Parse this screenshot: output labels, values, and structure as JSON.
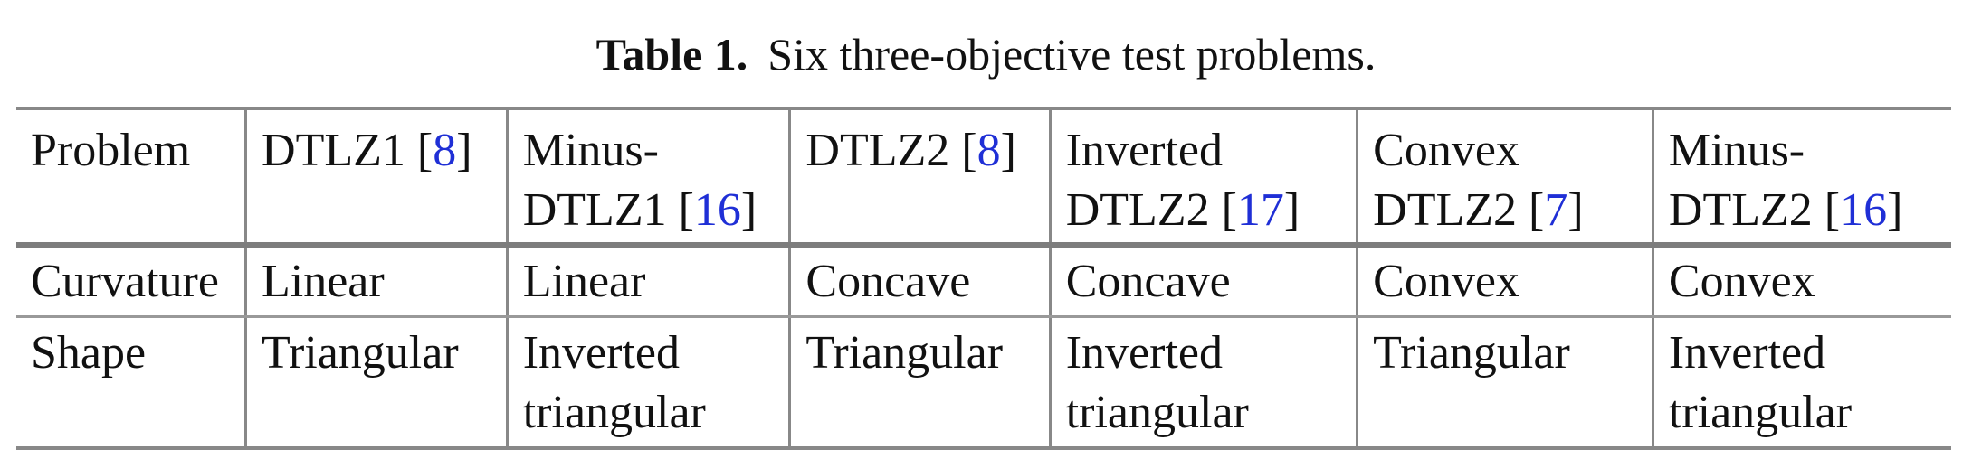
{
  "caption": {
    "label": "Table 1.",
    "text": "Six three-objective test problems."
  },
  "colors": {
    "citation": "#1f2fd6",
    "rule": "#888888",
    "text": "#111111"
  },
  "table": {
    "header": {
      "row_label": "Problem",
      "problems": [
        {
          "lines": [
            "DTLZ1 ["
          ],
          "cite": "8",
          "cite_close": "]"
        },
        {
          "lines": [
            "Minus-",
            "DTLZ1 ["
          ],
          "cite": "16",
          "cite_close": "]"
        },
        {
          "lines": [
            "DTLZ2 ["
          ],
          "cite": "8",
          "cite_close": "]"
        },
        {
          "lines": [
            "Inverted",
            "DTLZ2 ["
          ],
          "cite": "17",
          "cite_close": "]"
        },
        {
          "lines": [
            "Convex",
            "DTLZ2 ["
          ],
          "cite": "7",
          "cite_close": "]"
        },
        {
          "lines": [
            "Minus-",
            "DTLZ2 ["
          ],
          "cite": "16",
          "cite_close": "]"
        }
      ]
    },
    "curvature": {
      "row_label": "Curvature",
      "values": [
        "Linear",
        "Linear",
        "Concave",
        "Concave",
        "Convex",
        "Convex"
      ]
    },
    "shape": {
      "row_label": "Shape",
      "values": [
        [
          "Triangular"
        ],
        [
          "Inverted",
          "triangular"
        ],
        [
          "Triangular"
        ],
        [
          "Inverted",
          "triangular"
        ],
        [
          "Triangular"
        ],
        [
          "Inverted",
          "triangular"
        ]
      ]
    }
  }
}
